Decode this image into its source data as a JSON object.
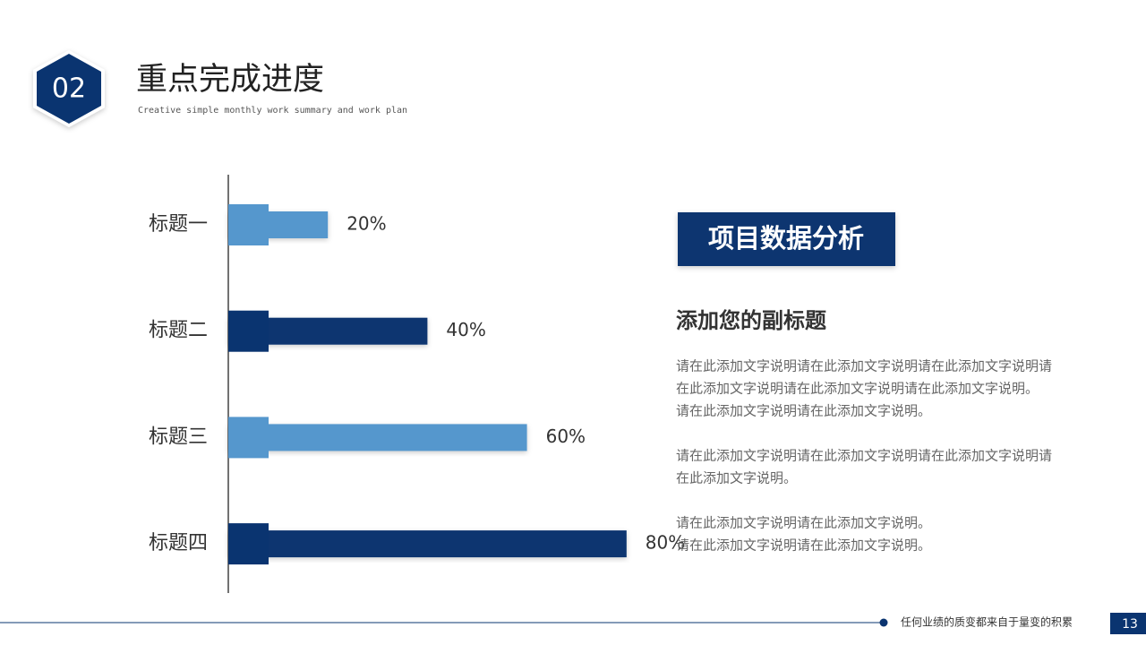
{
  "header": {
    "number": "02",
    "title": "重点完成进度",
    "subtitle": "Creative simple monthly work summary and work plan"
  },
  "chart_data": {
    "type": "bar",
    "orientation": "horizontal",
    "categories": [
      "标题一",
      "标题二",
      "标题三",
      "标题四"
    ],
    "values": [
      20,
      40,
      60,
      80
    ],
    "value_labels": [
      "20%",
      "40%",
      "60%",
      "80%"
    ],
    "colors": [
      "#5597cd",
      "#0a3470",
      "#5597cd",
      "#0a3470"
    ],
    "xlim": [
      0,
      100
    ]
  },
  "panel": {
    "heading": "项目数据分析",
    "subheading": "添加您的副标题",
    "paragraphs": [
      [
        "请在此添加文字说明请在此添加文字说明请在此添加文字说明请",
        "在此添加文字说明请在此添加文字说明请在此添加文字说明。",
        "请在此添加文字说明请在此添加文字说明。"
      ],
      [
        "请在此添加文字说明请在此添加文字说明请在此添加文字说明请",
        "在此添加文字说明。"
      ],
      [
        "请在此添加文字说明请在此添加文字说明。",
        "请在此添加文字说明请在此添加文字说明。"
      ]
    ]
  },
  "footer": {
    "slogan": "任何业绩的质变都来自于量变的积累",
    "page": "13"
  }
}
